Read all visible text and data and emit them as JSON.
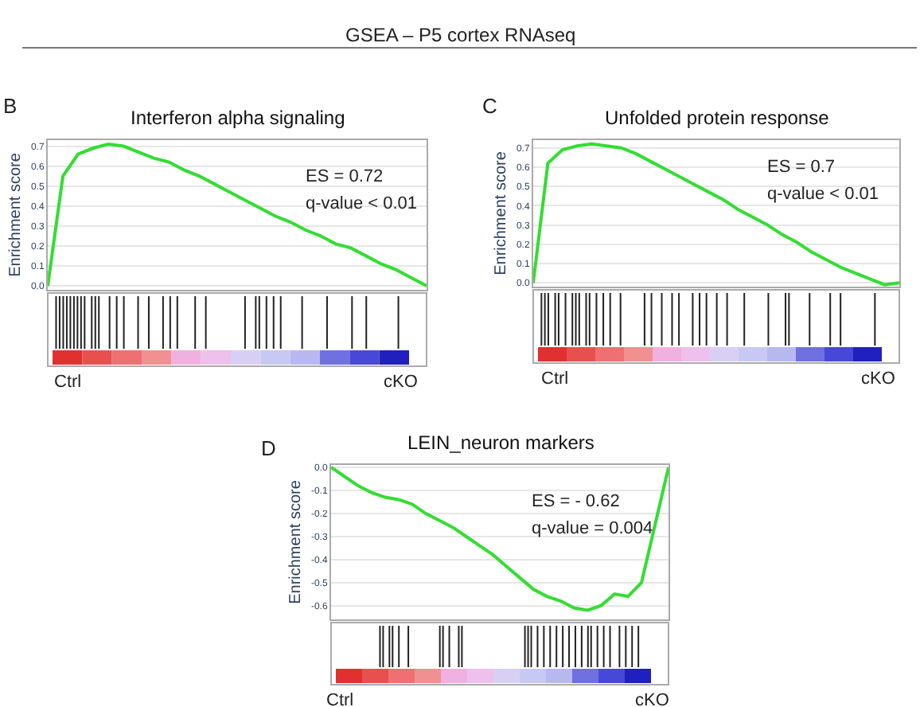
{
  "chart_data": [
    {
      "type": "line",
      "title": "Interferon alpha signaling",
      "ylabel": "Enrichment score",
      "annotations": [
        "GSEA – P5 cortex RNAseq",
        "B",
        "ES = 0.72",
        "q-value < 0.01",
        "Ctrl",
        "cKO"
      ],
      "categories": [
        null,
        null,
        null,
        null,
        null,
        null,
        null,
        null,
        null,
        null,
        null,
        null,
        null,
        null,
        null,
        null,
        null,
        null,
        null,
        null,
        null,
        null,
        null,
        null,
        null,
        null
      ],
      "series": [
        {
          "color": "#33dd33",
          "values": [
            0.0,
            0.55,
            0.66,
            0.69,
            0.71,
            0.7,
            0.67,
            0.64,
            0.62,
            0.58,
            0.55,
            0.51,
            0.47,
            0.43,
            0.39,
            0.35,
            0.32,
            0.28,
            0.25,
            0.21,
            0.19,
            0.15,
            0.11,
            0.08,
            0.04,
            0.0
          ]
        }
      ],
      "ylim": [
        -0.02,
        0.73
      ],
      "yticks": [
        {
          "value": 0,
          "label": "0.0"
        },
        {
          "value": 0.1,
          "label": "0.1"
        },
        {
          "value": 0.2,
          "label": "0.2"
        },
        {
          "value": 0.3,
          "label": "0.3"
        },
        {
          "value": 0.4,
          "label": "0.4"
        },
        {
          "value": 0.5,
          "label": "0.5"
        },
        {
          "value": 0.6,
          "label": "0.6"
        },
        {
          "value": 0.7,
          "label": "0.7"
        }
      ],
      "grid": "y",
      "tick_labels": "y"
    },
    {
      "type": "line",
      "title": "Unfolded protein response",
      "ylabel": "Enrichment score",
      "annotations": [
        "C",
        "ES = 0.7",
        "q-value < 0.01",
        "Ctrl",
        "cKO"
      ],
      "categories": [
        null,
        null,
        null,
        null,
        null,
        null,
        null,
        null,
        null,
        null,
        null,
        null,
        null,
        null,
        null,
        null,
        null,
        null,
        null,
        null,
        null,
        null,
        null,
        null,
        null,
        null
      ],
      "series": [
        {
          "color": "#33dd33",
          "values": [
            0.0,
            0.62,
            0.69,
            0.71,
            0.72,
            0.71,
            0.7,
            0.67,
            0.63,
            0.59,
            0.55,
            0.51,
            0.47,
            0.43,
            0.38,
            0.34,
            0.3,
            0.25,
            0.21,
            0.16,
            0.12,
            0.08,
            0.05,
            0.02,
            -0.01,
            0.0
          ]
        }
      ],
      "ylim": [
        -0.02,
        0.74
      ],
      "yticks": [
        {
          "value": 0,
          "label": "0.0"
        },
        {
          "value": 0.1,
          "label": "0.1"
        },
        {
          "value": 0.2,
          "label": "0.2"
        },
        {
          "value": 0.3,
          "label": "0.3"
        },
        {
          "value": 0.4,
          "label": "0.4"
        },
        {
          "value": 0.5,
          "label": "0.5"
        },
        {
          "value": 0.6,
          "label": "0.6"
        },
        {
          "value": 0.7,
          "label": "0.7"
        }
      ],
      "grid": "y",
      "tick_labels": "y"
    },
    {
      "type": "line",
      "title": "LEIN_neuron markers",
      "ylabel": "Enrichment score",
      "annotations": [
        "D",
        "ES = - 0.62",
        "q-value = 0.004",
        "Ctrl",
        "cKO"
      ],
      "categories": [
        null,
        null,
        null,
        null,
        null,
        null,
        null,
        null,
        null,
        null,
        null,
        null,
        null,
        null,
        null,
        null,
        null,
        null,
        null,
        null,
        null,
        null,
        null,
        null,
        null,
        null
      ],
      "series": [
        {
          "color": "#33dd33",
          "values": [
            0.0,
            -0.04,
            -0.08,
            -0.11,
            -0.13,
            -0.14,
            -0.16,
            -0.2,
            -0.23,
            -0.26,
            -0.3,
            -0.34,
            -0.38,
            -0.43,
            -0.48,
            -0.53,
            -0.56,
            -0.58,
            -0.61,
            -0.62,
            -0.6,
            -0.55,
            -0.56,
            -0.5,
            -0.25,
            0.0
          ]
        }
      ],
      "ylim": [
        -0.66,
        0.01
      ],
      "yticks": [
        {
          "value": 0,
          "label": "0.0"
        },
        {
          "value": -0.1,
          "label": "-0.1"
        },
        {
          "value": -0.2,
          "label": "-0.2"
        },
        {
          "value": -0.3,
          "label": "-0.3"
        },
        {
          "value": -0.4,
          "label": "-0.4"
        },
        {
          "value": -0.5,
          "label": "-0.5"
        },
        {
          "value": -0.6,
          "label": "-0.6"
        }
      ],
      "grid": "y",
      "tick_labels": "y"
    }
  ]
}
